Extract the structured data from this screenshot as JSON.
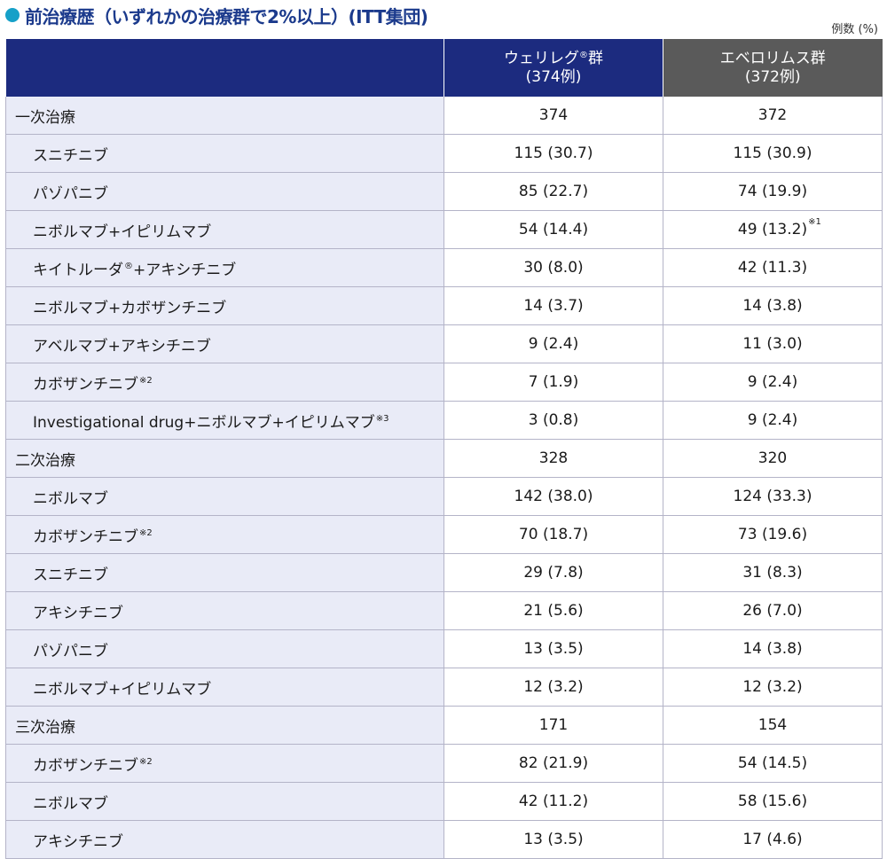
{
  "header": {
    "title": "前治療歴（いずれかの治療群で2%以上）(ITT集団)",
    "unit": "例数 (%)"
  },
  "table": {
    "group1": {
      "name": "ウェリレグ",
      "mark": "®",
      "suffix": "群",
      "n": "(374例)"
    },
    "group2": {
      "name": "エベロリムス群",
      "n": "(372例)"
    },
    "rows": [
      {
        "label": "一次治療",
        "sup": "",
        "v1": "374",
        "v2": "372",
        "v2sup": "",
        "level": 0
      },
      {
        "label": "スニチニブ",
        "sup": "",
        "v1": "115 (30.7)",
        "v2": "115 (30.9)",
        "v2sup": "",
        "level": 1
      },
      {
        "label": "パゾパニブ",
        "sup": "",
        "v1": "85 (22.7)",
        "v2": "74 (19.9)",
        "v2sup": "",
        "level": 1
      },
      {
        "label": "ニボルマブ+イピリムマブ",
        "sup": "",
        "v1": "54 (14.4)",
        "v2": "49 (13.2)",
        "v2sup": "※1",
        "level": 1
      },
      {
        "label": "キイトルーダ",
        "sup": "®",
        "label2": "+アキシチニブ",
        "v1": "30 (8.0)",
        "v2": "42 (11.3)",
        "v2sup": "",
        "level": 1
      },
      {
        "label": "ニボルマブ+カボザンチニブ",
        "sup": "",
        "v1": "14 (3.7)",
        "v2": "14 (3.8)",
        "v2sup": "",
        "level": 1
      },
      {
        "label": "アベルマブ+アキシチニブ",
        "sup": "",
        "v1": "9 (2.4)",
        "v2": "11 (3.0)",
        "v2sup": "",
        "level": 1
      },
      {
        "label": "カボザンチニブ",
        "sup": "※2",
        "v1": "7 (1.9)",
        "v2": "9 (2.4)",
        "v2sup": "",
        "level": 1
      },
      {
        "label": "Investigational drug+ニボルマブ+イピリムマブ",
        "sup": "※3",
        "v1": "3 (0.8)",
        "v2": "9 (2.4)",
        "v2sup": "",
        "level": 1
      },
      {
        "label": "二次治療",
        "sup": "",
        "v1": "328",
        "v2": "320",
        "v2sup": "",
        "level": 0
      },
      {
        "label": "ニボルマブ",
        "sup": "",
        "v1": "142 (38.0)",
        "v2": "124 (33.3)",
        "v2sup": "",
        "level": 1
      },
      {
        "label": "カボザンチニブ",
        "sup": "※2",
        "v1": "70 (18.7)",
        "v2": "73 (19.6)",
        "v2sup": "",
        "level": 1
      },
      {
        "label": "スニチニブ",
        "sup": "",
        "v1": "29 (7.8)",
        "v2": "31 (8.3)",
        "v2sup": "",
        "level": 1
      },
      {
        "label": "アキシチニブ",
        "sup": "",
        "v1": "21 (5.6)",
        "v2": "26 (7.0)",
        "v2sup": "",
        "level": 1
      },
      {
        "label": "パゾパニブ",
        "sup": "",
        "v1": "13 (3.5)",
        "v2": "14 (3.8)",
        "v2sup": "",
        "level": 1
      },
      {
        "label": "ニボルマブ+イピリムマブ",
        "sup": "",
        "v1": "12 (3.2)",
        "v2": "12 (3.2)",
        "v2sup": "",
        "level": 1
      },
      {
        "label": "三次治療",
        "sup": "",
        "v1": "171",
        "v2": "154",
        "v2sup": "",
        "level": 0
      },
      {
        "label": "カボザンチニブ",
        "sup": "※2",
        "v1": "82 (21.9)",
        "v2": "54 (14.5)",
        "v2sup": "",
        "level": 1
      },
      {
        "label": "ニボルマブ",
        "sup": "",
        "v1": "42 (11.2)",
        "v2": "58 (15.6)",
        "v2sup": "",
        "level": 1
      },
      {
        "label": "アキシチニブ",
        "sup": "",
        "v1": "13 (3.5)",
        "v2": "17 (4.6)",
        "v2sup": "",
        "level": 1
      }
    ]
  }
}
